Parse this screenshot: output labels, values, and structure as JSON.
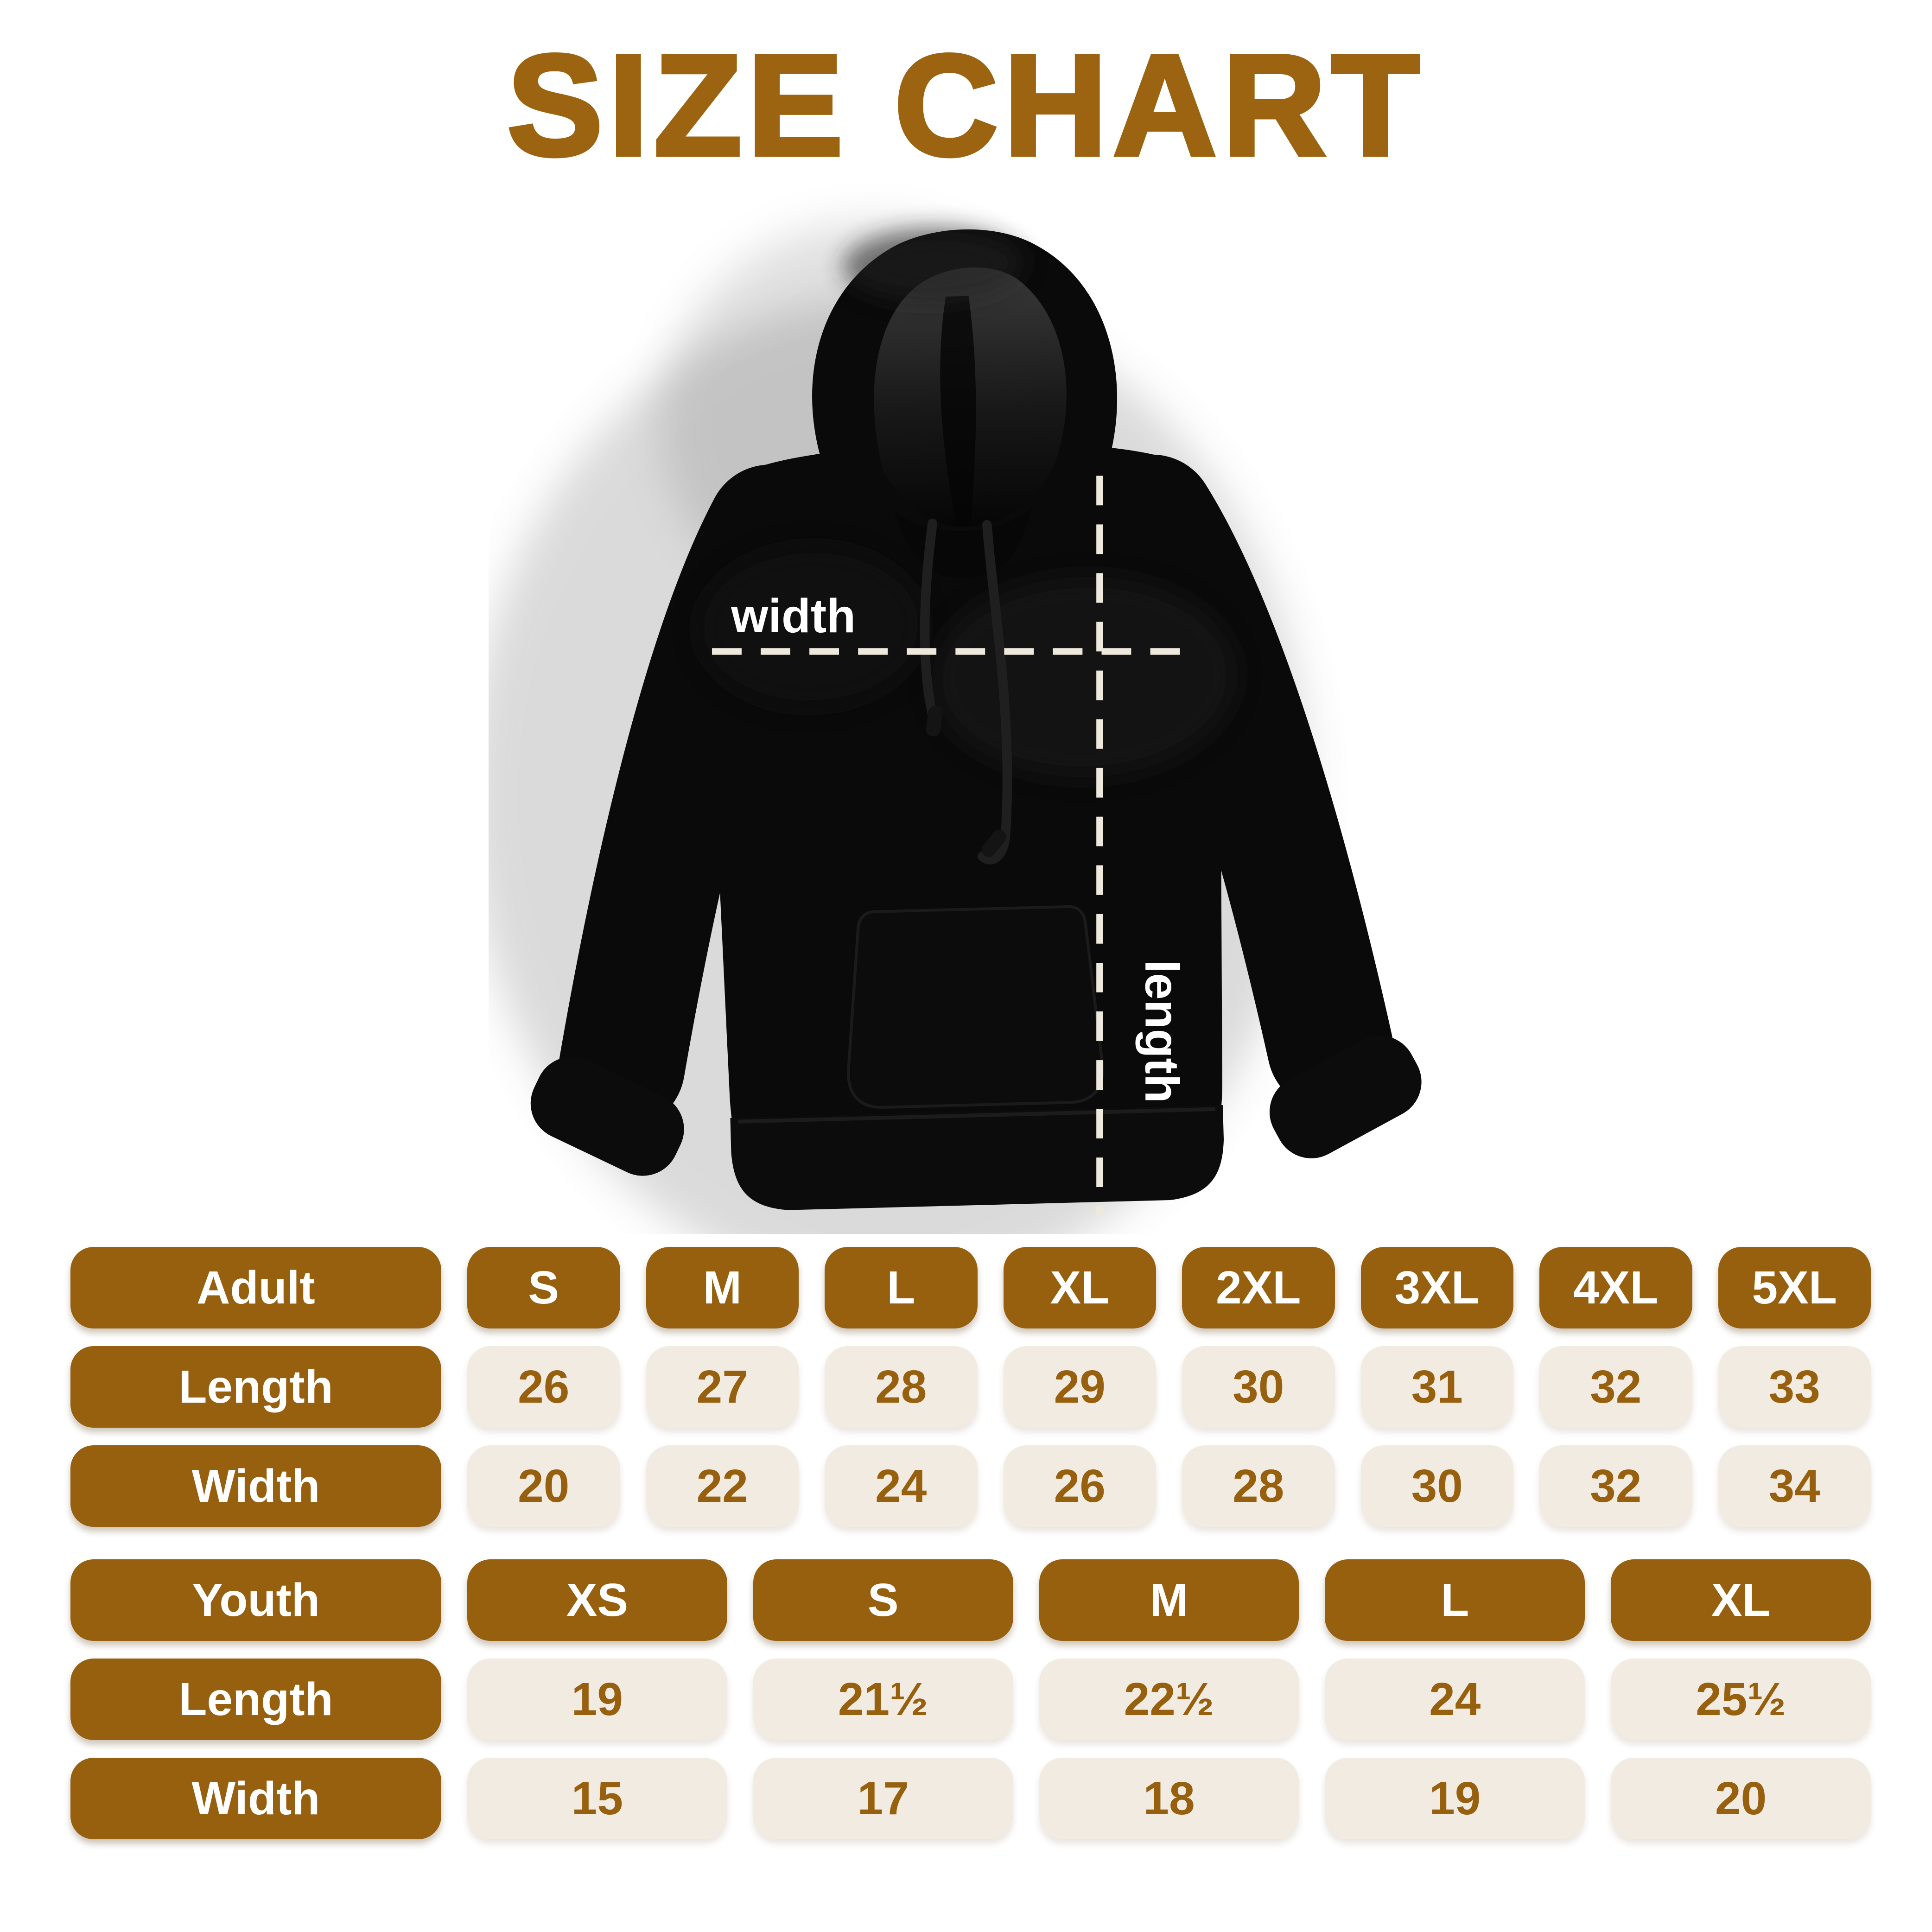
{
  "title": "SIZE CHART",
  "colors": {
    "brown": "#96600F",
    "title_brown": "#9C6410",
    "cream": "#F2EBE1",
    "dash_line": "#EFE9DD",
    "hoodie_black": "#0A0A0A",
    "background": "#FFFFFF",
    "label_text": "#FFFFFF"
  },
  "hoodie": {
    "width_label": "width",
    "length_label": "length"
  },
  "adult_table": {
    "label": "Adult",
    "sizes": [
      "S",
      "M",
      "L",
      "XL",
      "2XL",
      "3XL",
      "4XL",
      "5XL"
    ],
    "rows": [
      {
        "label": "Length",
        "values": [
          "26",
          "27",
          "28",
          "29",
          "30",
          "31",
          "32",
          "33"
        ]
      },
      {
        "label": "Width",
        "values": [
          "20",
          "22",
          "24",
          "26",
          "28",
          "30",
          "32",
          "34"
        ]
      }
    ]
  },
  "youth_table": {
    "label": "Youth",
    "sizes": [
      "XS",
      "S",
      "M",
      "L",
      "XL"
    ],
    "rows": [
      {
        "label": "Length",
        "values": [
          "19",
          "21½",
          "22½",
          "24",
          "25½"
        ]
      },
      {
        "label": "Width",
        "values": [
          "15",
          "17",
          "18",
          "19",
          "20"
        ]
      }
    ]
  },
  "chart_data": {
    "type": "table",
    "title": "SIZE CHART",
    "tables": [
      {
        "name": "Adult",
        "columns": [
          "S",
          "M",
          "L",
          "XL",
          "2XL",
          "3XL",
          "4XL",
          "5XL"
        ],
        "rows": [
          {
            "label": "Length",
            "values": [
              26,
              27,
              28,
              29,
              30,
              31,
              32,
              33
            ]
          },
          {
            "label": "Width",
            "values": [
              20,
              22,
              24,
              26,
              28,
              30,
              32,
              34
            ]
          }
        ]
      },
      {
        "name": "Youth",
        "columns": [
          "XS",
          "S",
          "M",
          "L",
          "XL"
        ],
        "rows": [
          {
            "label": "Length",
            "values": [
              19,
              21.5,
              22.5,
              24,
              25.5
            ]
          },
          {
            "label": "Width",
            "values": [
              15,
              17,
              18,
              19,
              20
            ]
          }
        ]
      }
    ]
  }
}
